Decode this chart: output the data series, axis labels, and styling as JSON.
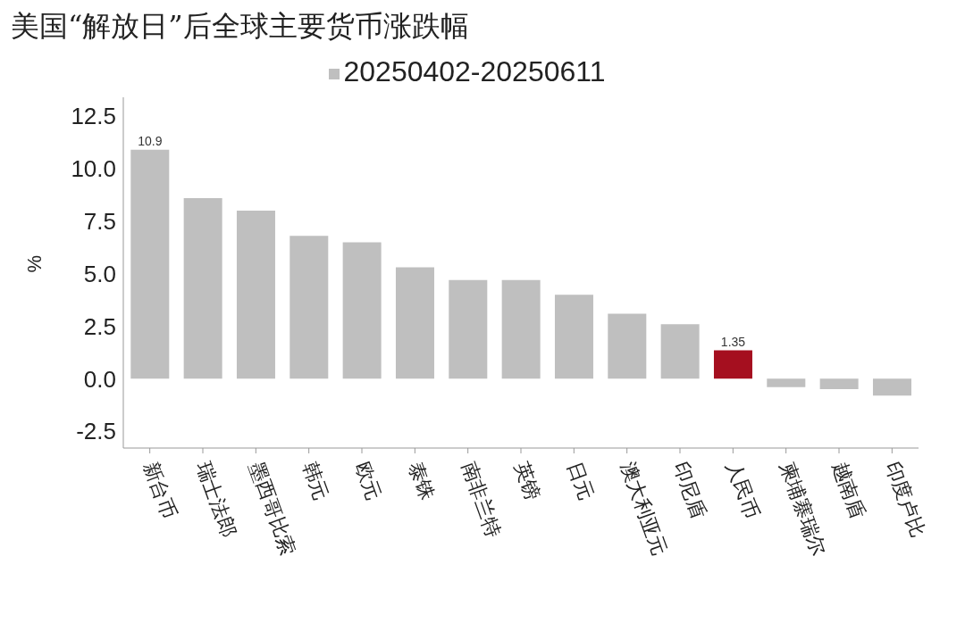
{
  "chart_data": {
    "type": "bar",
    "title": "美国“解放日”后全球主要货币涨跌幅",
    "ylabel": "%",
    "categories": [
      "新台币",
      "瑞士法郎",
      "墨西哥比索",
      "韩元",
      "欧元",
      "泰铢",
      "南非兰特",
      "英镑",
      "日元",
      "澳大利亚元",
      "印尼盾",
      "人民币",
      "柬埔寨瑞尔",
      "越南盾",
      "印度卢比"
    ],
    "series": [
      {
        "name": "20250402-20250611",
        "color": "#bfbfbf",
        "values": [
          10.9,
          8.6,
          8.0,
          6.8,
          6.5,
          5.3,
          4.7,
          4.7,
          4.0,
          3.1,
          2.6,
          1.35,
          -0.4,
          -0.5,
          -0.8
        ],
        "colors": [
          "#bfbfbf",
          "#bfbfbf",
          "#bfbfbf",
          "#bfbfbf",
          "#bfbfbf",
          "#bfbfbf",
          "#bfbfbf",
          "#bfbfbf",
          "#bfbfbf",
          "#bfbfbf",
          "#bfbfbf",
          "#a50f1f",
          "#bfbfbf",
          "#bfbfbf",
          "#bfbfbf"
        ],
        "value_labels": [
          "10.9",
          null,
          null,
          null,
          null,
          null,
          null,
          null,
          null,
          null,
          null,
          "1.35",
          null,
          null,
          null
        ]
      }
    ],
    "ylim": [
      -3.3,
      13.4
    ],
    "yticks": [
      {
        "value": -2.5,
        "label": "-2.5"
      },
      {
        "value": 0,
        "label": "0.0"
      },
      {
        "value": 2.5,
        "label": "2.5"
      },
      {
        "value": 5,
        "label": "5.0"
      },
      {
        "value": 7.5,
        "label": "7.5"
      },
      {
        "value": 10,
        "label": "10.0"
      },
      {
        "value": 12.5,
        "label": "12.5"
      }
    ],
    "grid": false,
    "legend": "top"
  }
}
